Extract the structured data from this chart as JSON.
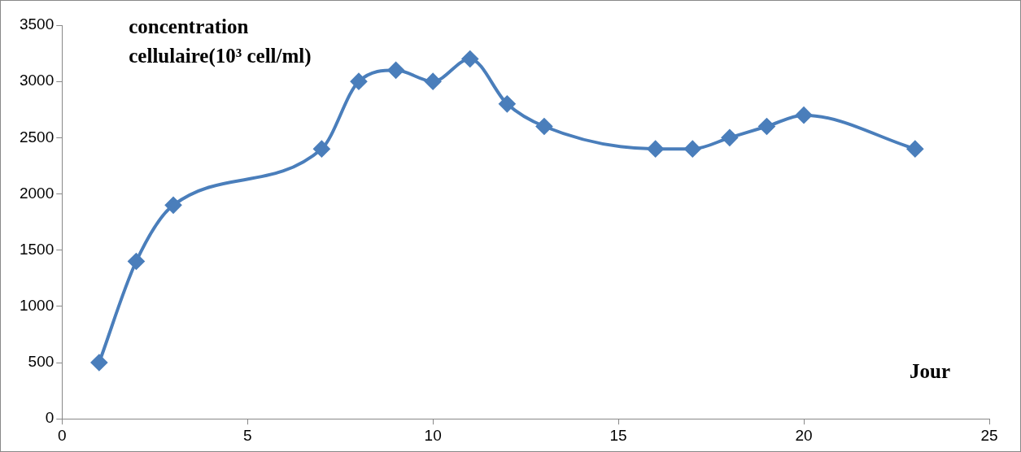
{
  "chart_data": {
    "type": "line",
    "xlabel": "Jour",
    "ylabel": "concentration cellulaire(10³ cell/ml)",
    "x": [
      1,
      2,
      3,
      7,
      8,
      9,
      10,
      11,
      12,
      13,
      16,
      17,
      18,
      19,
      20,
      23
    ],
    "series": [
      {
        "color": "#4a7ebb",
        "values": [
          500,
          1400,
          1900,
          2400,
          3000,
          3100,
          3000,
          3200,
          2800,
          2600,
          2400,
          2400,
          2500,
          2600,
          2700,
          2400
        ]
      }
    ],
    "xlim": [
      0,
      25
    ],
    "xticks": [
      0,
      5,
      10,
      15,
      20,
      25
    ],
    "ylim": [
      0,
      3500
    ],
    "yticks": [
      0,
      500,
      1000,
      1500,
      2000,
      2500,
      3000,
      3500
    ],
    "grid": false,
    "legend": false,
    "marker": "diamond",
    "line_style": "solid"
  }
}
